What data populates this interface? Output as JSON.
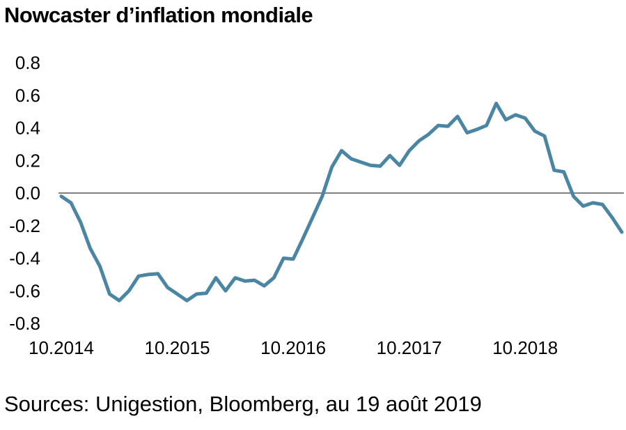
{
  "title": "Nowcaster d’inflation mondiale",
  "source": "Sources: Unigestion, Bloomberg, au 19 août 2019",
  "colors": {
    "line": "#4a86a3",
    "zero_line": "#808080",
    "text": "#000000"
  },
  "chart_data": {
    "type": "line",
    "title": "Nowcaster d’inflation mondiale",
    "xlabel": "",
    "ylabel": "",
    "ylim": [
      -0.8,
      0.8
    ],
    "y_ticks": [
      0.8,
      0.6,
      0.4,
      0.2,
      0.0,
      -0.2,
      -0.4,
      -0.6,
      -0.8
    ],
    "y_tick_labels": [
      "0.8",
      "0.6",
      "0.4",
      "0.2",
      "0.0",
      "-0.2",
      "-0.4",
      "-0.6",
      "-0.8"
    ],
    "x_tick_labels": [
      "10.2014",
      "10.2015",
      "10.2016",
      "10.2017",
      "10.2018"
    ],
    "x_tick_positions": [
      0,
      12,
      24,
      36,
      48
    ],
    "x_range": [
      0,
      58
    ],
    "grid": false,
    "reference_line_y": 0.0,
    "series": [
      {
        "values": [
          -0.02,
          -0.06,
          -0.18,
          -0.34,
          -0.45,
          -0.62,
          -0.66,
          -0.6,
          -0.51,
          -0.5,
          -0.495,
          -0.58,
          -0.62,
          -0.66,
          -0.62,
          -0.615,
          -0.52,
          -0.6,
          -0.52,
          -0.54,
          -0.535,
          -0.57,
          -0.52,
          -0.4,
          -0.405,
          -0.28,
          -0.15,
          -0.02,
          0.16,
          0.26,
          0.21,
          0.19,
          0.17,
          0.165,
          0.23,
          0.17,
          0.26,
          0.32,
          0.36,
          0.415,
          0.41,
          0.47,
          0.37,
          0.39,
          0.415,
          0.55,
          0.45,
          0.48,
          0.46,
          0.38,
          0.35,
          0.14,
          0.13,
          -0.02,
          -0.08,
          -0.06,
          -0.07,
          -0.15,
          -0.24
        ]
      }
    ]
  }
}
